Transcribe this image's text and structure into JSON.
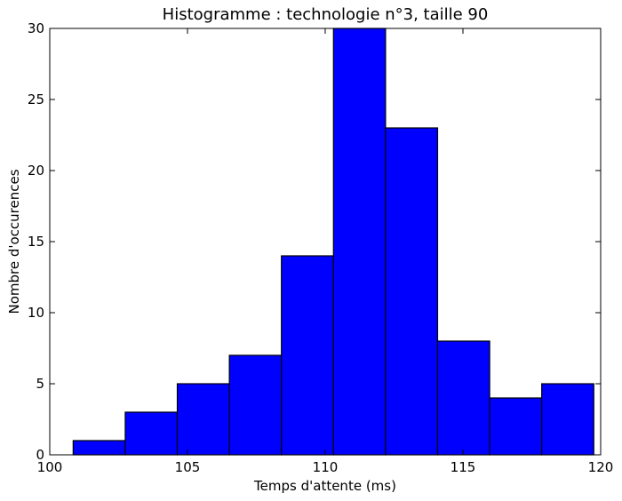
{
  "chart_data": {
    "type": "bar",
    "title": "Histogramme : technologie n°3, taille 90",
    "xlabel": "Temps d'attente (ms)",
    "ylabel": "Nombre d'occurences",
    "xlim": [
      100,
      120
    ],
    "ylim": [
      0,
      30
    ],
    "xticks": [
      "100",
      "105",
      "110",
      "115",
      "120"
    ],
    "yticks": [
      "0",
      "5",
      "10",
      "15",
      "20",
      "25",
      "30"
    ],
    "bins": [
      {
        "start": 100.85,
        "end": 102.74,
        "count": 1
      },
      {
        "start": 102.74,
        "end": 104.63,
        "count": 3
      },
      {
        "start": 104.63,
        "end": 106.52,
        "count": 5
      },
      {
        "start": 106.52,
        "end": 108.41,
        "count": 7
      },
      {
        "start": 108.41,
        "end": 110.3,
        "count": 14
      },
      {
        "start": 110.3,
        "end": 112.19,
        "count": 30
      },
      {
        "start": 112.19,
        "end": 114.08,
        "count": 23
      },
      {
        "start": 114.08,
        "end": 115.97,
        "count": 8
      },
      {
        "start": 115.97,
        "end": 117.86,
        "count": 4
      },
      {
        "start": 117.86,
        "end": 119.75,
        "count": 5
      }
    ],
    "bar_color": "#0000ff",
    "edge_color": "#000000",
    "grid": false
  }
}
